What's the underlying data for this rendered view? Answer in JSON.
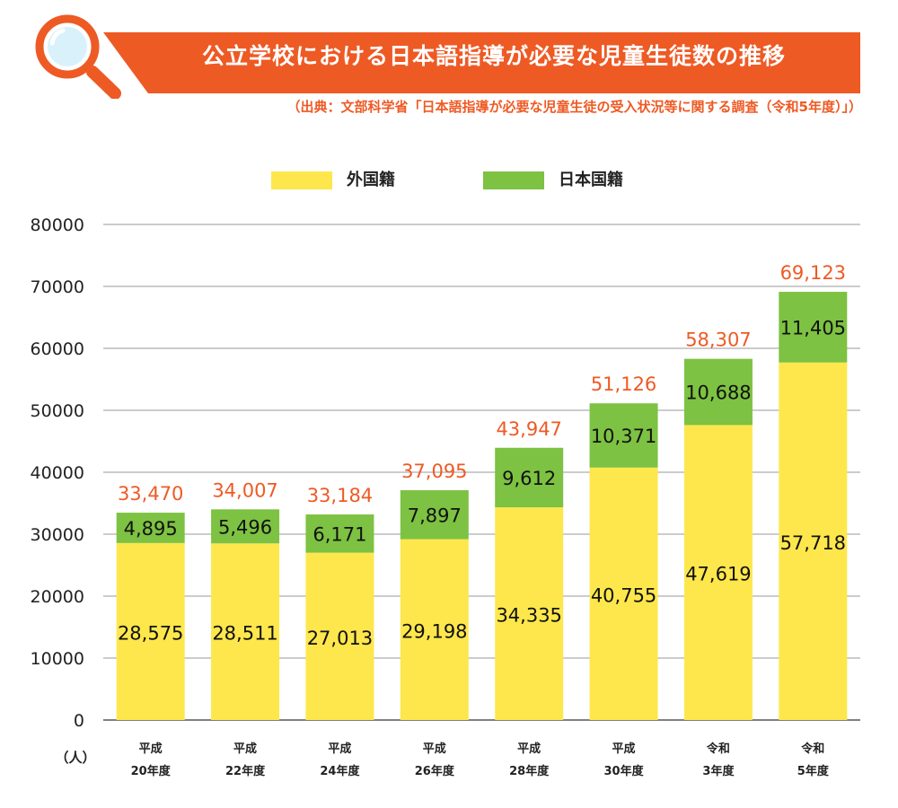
{
  "title": "公立学校における日本語指導が必要な児童生徒数の推移",
  "source": "（出典：文部科学省「日本語指導が必要な児童生徒の受入状況等に関する調査（令和5年度）」）",
  "colors": {
    "banner": "#ee5a24",
    "foreign": "#fde74c",
    "japanese": "#7dc242",
    "total_label": "#ee5a24",
    "grid": "#999999"
  },
  "legend": {
    "position": "top-center",
    "items": [
      {
        "label": "外国籍",
        "color": "#fde74c"
      },
      {
        "label": "日本国籍",
        "color": "#7dc242"
      }
    ]
  },
  "chart_data": {
    "type": "bar",
    "stacked": true,
    "unit_label": "（人）",
    "ylim": [
      0,
      80000
    ],
    "yticks": [
      0,
      10000,
      20000,
      30000,
      40000,
      50000,
      60000,
      70000,
      80000
    ],
    "grid": true,
    "categories": [
      [
        "平成",
        "20年度"
      ],
      [
        "平成",
        "22年度"
      ],
      [
        "平成",
        "24年度"
      ],
      [
        "平成",
        "26年度"
      ],
      [
        "平成",
        "28年度"
      ],
      [
        "平成",
        "30年度"
      ],
      [
        "令和",
        "3年度"
      ],
      [
        "令和",
        "5年度"
      ]
    ],
    "series": [
      {
        "name": "外国籍",
        "values": [
          28575,
          28511,
          27013,
          29198,
          34335,
          40755,
          47619,
          57718
        ]
      },
      {
        "name": "日本国籍",
        "values": [
          4895,
          5496,
          6171,
          7897,
          9612,
          10371,
          10688,
          11405
        ]
      }
    ],
    "totals": [
      33470,
      34007,
      33184,
      37095,
      43947,
      51126,
      58307,
      69123
    ]
  }
}
